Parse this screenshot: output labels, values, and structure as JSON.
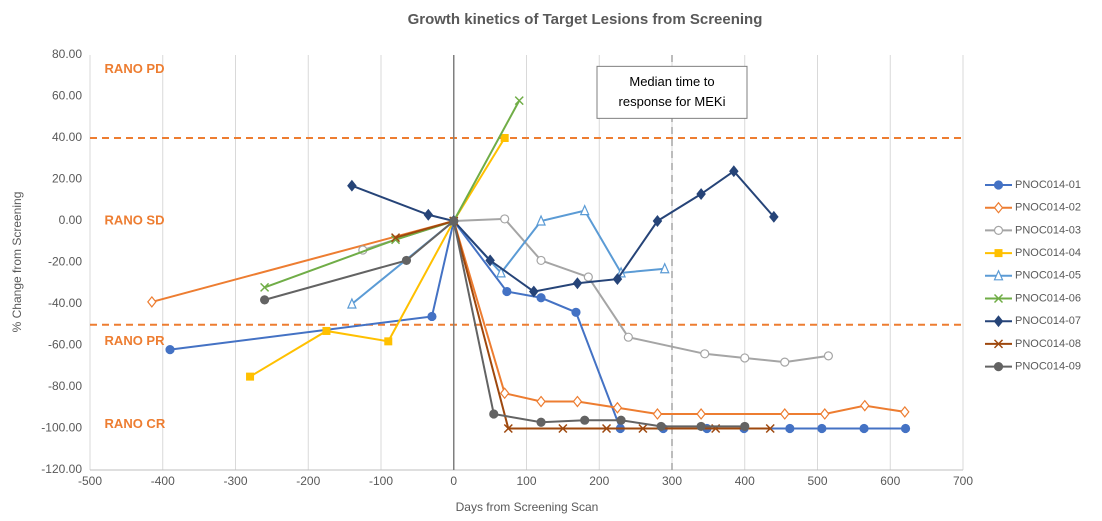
{
  "chart_data": {
    "type": "line",
    "title": "Growth kinetics of Target Lesions from Screening",
    "x_label": "Days from Screening Scan",
    "y_label": "% Change from Screening",
    "xlim": [
      -500,
      700
    ],
    "xticks": [
      -500,
      -400,
      -300,
      -200,
      -100,
      0,
      100,
      200,
      300,
      400,
      500,
      600,
      700
    ],
    "ylim": [
      -120,
      80
    ],
    "yticks": [
      {
        "value": -120,
        "label": "-120.00"
      },
      {
        "value": -100,
        "label": "-100.00"
      },
      {
        "value": -80,
        "label": "-80.00"
      },
      {
        "value": -60,
        "label": "-60.00"
      },
      {
        "value": -40,
        "label": "-40.00"
      },
      {
        "value": -20,
        "label": "-20.00"
      },
      {
        "value": 0,
        "label": "0.00"
      },
      {
        "value": 20,
        "label": "20.00"
      },
      {
        "value": 40,
        "label": "40.00"
      },
      {
        "value": 60,
        "label": "60.00"
      },
      {
        "value": 80,
        "label": "80.00"
      }
    ],
    "grid": "x",
    "hlines": [
      {
        "value": 40,
        "color": "#ed7d31"
      },
      {
        "value": -50,
        "color": "#ed7d31"
      }
    ],
    "vlines": [
      {
        "value": 0,
        "color": "#7f7f7f",
        "dashed": false
      },
      {
        "value": 300,
        "color": "#a6a6a6",
        "dashed": true
      }
    ],
    "annotations": [
      {
        "text": "RANO PD",
        "x": -480,
        "y": 73
      },
      {
        "text": "RANO SD",
        "x": -480,
        "y": 0
      },
      {
        "text": "RANO PR",
        "x": -480,
        "y": -58
      },
      {
        "text": "RANO CR",
        "x": -480,
        "y": -98
      }
    ],
    "note": {
      "lines": [
        "Median time to",
        "response for MEKi"
      ],
      "x": 300,
      "y": 62
    },
    "legend": "right",
    "series": [
      {
        "name": "PNOC014-01",
        "color": "#4472c4",
        "marker": "circle",
        "x": [
          -390,
          -30,
          0,
          73,
          120,
          168,
          229,
          288,
          348,
          399,
          462,
          506,
          564,
          621
        ],
        "values": [
          -62,
          -46,
          0,
          -34,
          -37,
          -44,
          -100,
          -100,
          -100,
          -100,
          -100,
          -100,
          -100,
          -100
        ]
      },
      {
        "name": "PNOC014-02",
        "color": "#ed7d31",
        "marker": "diamond",
        "x": [
          -415,
          0,
          70,
          120,
          170,
          225,
          280,
          340,
          455,
          510,
          565,
          620
        ],
        "values": [
          -39,
          0,
          -83,
          -87,
          -87,
          -90,
          -93,
          -93,
          -93,
          -93,
          -89,
          -92
        ]
      },
      {
        "name": "PNOC014-03",
        "color": "#a5a5a5",
        "marker": "circle-open",
        "x": [
          -125,
          0,
          70,
          120,
          185,
          240,
          345,
          400,
          455,
          515
        ],
        "values": [
          -14,
          0,
          1,
          -19,
          -27,
          -56,
          -64,
          -66,
          -68,
          -65
        ]
      },
      {
        "name": "PNOC014-04",
        "color": "#ffc000",
        "marker": "square",
        "x": [
          -280,
          -175,
          -90,
          0,
          70
        ],
        "values": [
          -75,
          -53,
          -58,
          0,
          40
        ]
      },
      {
        "name": "PNOC014-05",
        "color": "#5b9bd5",
        "marker": "triangle",
        "x": [
          -140,
          0,
          65,
          120,
          180,
          230,
          290
        ],
        "values": [
          -40,
          0,
          -25,
          0,
          5,
          -25,
          -23
        ]
      },
      {
        "name": "PNOC014-06",
        "color": "#70ad47",
        "marker": "x",
        "x": [
          -260,
          -80,
          0,
          90
        ],
        "values": [
          -32,
          -9,
          0,
          58
        ]
      },
      {
        "name": "PNOC014-07",
        "color": "#264478",
        "marker": "diamond",
        "x": [
          -140,
          -35,
          0,
          50,
          110,
          170,
          225,
          280,
          340,
          385,
          440
        ],
        "values": [
          17,
          3,
          0,
          -19,
          -34,
          -30,
          -28,
          0,
          13,
          24,
          2
        ]
      },
      {
        "name": "PNOC014-08",
        "color": "#9e480e",
        "marker": "x",
        "x": [
          -80,
          0,
          75,
          150,
          210,
          260,
          360,
          435
        ],
        "values": [
          -8,
          0,
          -100,
          -100,
          -100,
          -100,
          -100,
          -100
        ]
      },
      {
        "name": "PNOC014-09",
        "color": "#636363",
        "marker": "circle",
        "x": [
          -260,
          -65,
          0,
          55,
          120,
          180,
          230,
          285,
          340,
          400
        ],
        "values": [
          -38,
          -19,
          0,
          -93,
          -97,
          -96,
          -96,
          -99,
          -99,
          -99
        ]
      }
    ]
  }
}
